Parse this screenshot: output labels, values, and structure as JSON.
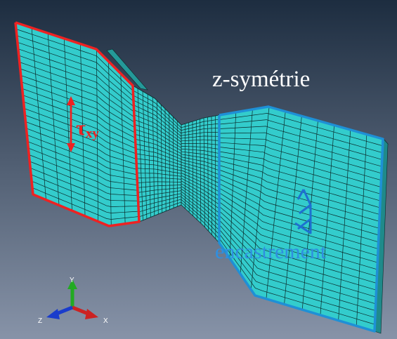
{
  "labels": {
    "symmetry": "z-symétrie",
    "fixed": "encastrement",
    "shear_symbol": "τ",
    "shear_subscript": "xy"
  },
  "triad": {
    "x": "X",
    "y": "Y",
    "z": "Z"
  },
  "colors": {
    "background_top": "#1d2d40",
    "background_bottom": "#8793a8",
    "mesh_fill": "#33cccc",
    "mesh_line": "#0a2a2a",
    "left_boundary": "#ee2222",
    "right_boundary": "#1e90d6",
    "axis_x": "#cc2222",
    "axis_y": "#22aa22",
    "axis_z": "#1a3ccc"
  }
}
